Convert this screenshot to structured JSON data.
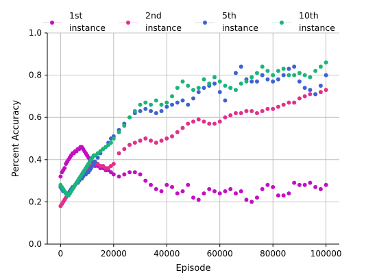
{
  "chart_data": {
    "type": "scatter",
    "title": "",
    "xlabel": "Episode",
    "ylabel": "Percent Accuracy",
    "xlim": [
      -5000,
      105000
    ],
    "ylim": [
      0.0,
      1.0
    ],
    "xticks": [
      0,
      20000,
      40000,
      60000,
      80000,
      100000
    ],
    "xtick_labels": [
      "0",
      "20000",
      "40000",
      "60000",
      "80000",
      "100000"
    ],
    "yticks": [
      0.0,
      0.2,
      0.4,
      0.6,
      0.8,
      1.0
    ],
    "ytick_labels": [
      "0.0",
      "0.2",
      "0.4",
      "0.6",
      "0.8",
      "1.0"
    ],
    "grid": true,
    "legend_position": "top, above plot, 4 columns",
    "series": [
      {
        "name": "1st instance",
        "color": "#c30ec3",
        "x": [
          0,
          500,
          1000,
          1500,
          2000,
          2500,
          3000,
          3500,
          4000,
          4500,
          5000,
          5500,
          6000,
          6500,
          7000,
          7500,
          8000,
          8500,
          9000,
          9500,
          10000,
          10500,
          11000,
          11500,
          12000,
          12500,
          13000,
          14000,
          15000,
          16000,
          17000,
          18000,
          19000,
          20000,
          22000,
          24000,
          26000,
          28000,
          30000,
          32000,
          34000,
          36000,
          38000,
          40000,
          42000,
          44000,
          46000,
          48000,
          50000,
          52000,
          54000,
          56000,
          58000,
          60000,
          62000,
          64000,
          66000,
          68000,
          70000,
          72000,
          74000,
          76000,
          78000,
          80000,
          82000,
          84000,
          86000,
          88000,
          90000,
          92000,
          94000,
          96000,
          98000,
          100000
        ],
        "y": [
          0.32,
          0.34,
          0.35,
          0.36,
          0.38,
          0.39,
          0.4,
          0.41,
          0.42,
          0.43,
          0.43,
          0.44,
          0.44,
          0.45,
          0.45,
          0.46,
          0.46,
          0.45,
          0.44,
          0.43,
          0.42,
          0.41,
          0.4,
          0.39,
          0.39,
          0.38,
          0.37,
          0.37,
          0.36,
          0.36,
          0.35,
          0.35,
          0.34,
          0.33,
          0.32,
          0.33,
          0.34,
          0.34,
          0.33,
          0.3,
          0.28,
          0.26,
          0.25,
          0.28,
          0.27,
          0.24,
          0.25,
          0.28,
          0.22,
          0.21,
          0.24,
          0.26,
          0.25,
          0.24,
          0.25,
          0.26,
          0.24,
          0.25,
          0.21,
          0.2,
          0.22,
          0.26,
          0.28,
          0.27,
          0.23,
          0.23,
          0.24,
          0.29,
          0.28,
          0.28,
          0.29,
          0.27,
          0.26,
          0.28
        ]
      },
      {
        "name": "2nd instance",
        "color": "#e0308c",
        "x": [
          0,
          500,
          1000,
          1500,
          2000,
          2500,
          3000,
          3500,
          4000,
          4500,
          5000,
          5500,
          6000,
          6500,
          7000,
          7500,
          8000,
          8500,
          9000,
          9500,
          10000,
          10500,
          11000,
          11500,
          12000,
          12500,
          13000,
          14000,
          15000,
          16000,
          17000,
          18000,
          19000,
          20000,
          22000,
          24000,
          26000,
          28000,
          30000,
          32000,
          34000,
          36000,
          38000,
          40000,
          42000,
          44000,
          46000,
          48000,
          50000,
          52000,
          54000,
          56000,
          58000,
          60000,
          62000,
          64000,
          66000,
          68000,
          70000,
          72000,
          74000,
          76000,
          78000,
          80000,
          82000,
          84000,
          86000,
          88000,
          90000,
          92000,
          94000,
          96000,
          98000,
          100000
        ],
        "y": [
          0.18,
          0.19,
          0.2,
          0.21,
          0.22,
          0.23,
          0.24,
          0.25,
          0.25,
          0.26,
          0.27,
          0.28,
          0.29,
          0.3,
          0.31,
          0.32,
          0.33,
          0.34,
          0.34,
          0.35,
          0.35,
          0.36,
          0.36,
          0.37,
          0.37,
          0.38,
          0.38,
          0.38,
          0.37,
          0.37,
          0.36,
          0.36,
          0.37,
          0.38,
          0.43,
          0.45,
          0.47,
          0.48,
          0.49,
          0.5,
          0.49,
          0.48,
          0.49,
          0.5,
          0.51,
          0.53,
          0.55,
          0.57,
          0.58,
          0.59,
          0.58,
          0.57,
          0.57,
          0.58,
          0.6,
          0.61,
          0.62,
          0.62,
          0.63,
          0.63,
          0.62,
          0.63,
          0.64,
          0.64,
          0.65,
          0.66,
          0.67,
          0.67,
          0.69,
          0.7,
          0.71,
          0.71,
          0.72,
          0.73
        ]
      },
      {
        "name": "5th instance",
        "color": "#3e62d1",
        "x": [
          0,
          500,
          1000,
          1500,
          2000,
          2500,
          3000,
          3500,
          4000,
          4500,
          5000,
          5500,
          6000,
          6500,
          7000,
          7500,
          8000,
          8500,
          9000,
          9500,
          10000,
          10500,
          11000,
          11500,
          12000,
          12500,
          13000,
          14000,
          15000,
          16000,
          17000,
          18000,
          19000,
          20000,
          22000,
          24000,
          26000,
          28000,
          30000,
          32000,
          34000,
          36000,
          38000,
          40000,
          42000,
          44000,
          46000,
          48000,
          50000,
          52000,
          54000,
          56000,
          58000,
          60000,
          62000,
          64000,
          66000,
          68000,
          70000,
          72000,
          74000,
          76000,
          78000,
          80000,
          82000,
          84000,
          86000,
          88000,
          90000,
          92000,
          94000,
          96000,
          98000,
          100000
        ],
        "y": [
          0.27,
          0.26,
          0.25,
          0.25,
          0.24,
          0.24,
          0.24,
          0.25,
          0.26,
          0.27,
          0.27,
          0.28,
          0.29,
          0.29,
          0.3,
          0.31,
          0.31,
          0.32,
          0.33,
          0.33,
          0.34,
          0.34,
          0.35,
          0.36,
          0.37,
          0.38,
          0.39,
          0.41,
          0.43,
          0.45,
          0.46,
          0.48,
          0.5,
          0.51,
          0.54,
          0.57,
          0.6,
          0.62,
          0.63,
          0.64,
          0.63,
          0.62,
          0.63,
          0.65,
          0.66,
          0.67,
          0.68,
          0.66,
          0.69,
          0.72,
          0.74,
          0.75,
          0.76,
          0.72,
          0.68,
          0.74,
          0.81,
          0.84,
          0.78,
          0.77,
          0.77,
          0.8,
          0.78,
          0.77,
          0.78,
          0.8,
          0.83,
          0.84,
          0.77,
          0.74,
          0.73,
          0.71,
          0.75,
          0.8
        ]
      },
      {
        "name": "10th instance",
        "color": "#1ab57a",
        "x": [
          0,
          500,
          1000,
          1500,
          2000,
          2500,
          3000,
          3500,
          4000,
          4500,
          5000,
          5500,
          6000,
          6500,
          7000,
          7500,
          8000,
          8500,
          9000,
          9500,
          10000,
          10500,
          11000,
          11500,
          12000,
          12500,
          13000,
          14000,
          15000,
          16000,
          17000,
          18000,
          19000,
          20000,
          22000,
          24000,
          26000,
          28000,
          30000,
          32000,
          34000,
          36000,
          38000,
          40000,
          42000,
          44000,
          46000,
          48000,
          50000,
          52000,
          54000,
          56000,
          58000,
          60000,
          62000,
          64000,
          66000,
          68000,
          70000,
          72000,
          74000,
          76000,
          78000,
          80000,
          82000,
          84000,
          86000,
          88000,
          90000,
          92000,
          94000,
          96000,
          98000,
          100000
        ],
        "y": [
          0.28,
          0.27,
          0.26,
          0.25,
          0.24,
          0.23,
          0.23,
          0.24,
          0.25,
          0.26,
          0.27,
          0.28,
          0.29,
          0.3,
          0.31,
          0.32,
          0.33,
          0.34,
          0.35,
          0.36,
          0.37,
          0.38,
          0.39,
          0.4,
          0.41,
          0.42,
          0.42,
          0.43,
          0.44,
          0.45,
          0.46,
          0.47,
          0.48,
          0.5,
          0.53,
          0.56,
          0.6,
          0.63,
          0.66,
          0.67,
          0.66,
          0.68,
          0.66,
          0.67,
          0.7,
          0.74,
          0.77,
          0.75,
          0.73,
          0.74,
          0.78,
          0.76,
          0.79,
          0.77,
          0.75,
          0.74,
          0.73,
          0.76,
          0.77,
          0.79,
          0.81,
          0.84,
          0.82,
          0.8,
          0.82,
          0.83,
          0.8,
          0.8,
          0.81,
          0.8,
          0.79,
          0.82,
          0.84,
          0.86
        ]
      }
    ]
  }
}
